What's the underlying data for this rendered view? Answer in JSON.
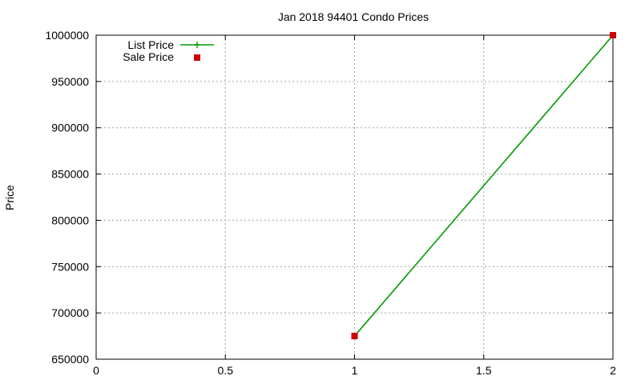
{
  "chart_data": {
    "type": "line",
    "title": "Jan 2018 94401 Condo Prices",
    "xlabel": "",
    "ylabel": "Price",
    "xlim": [
      0,
      2
    ],
    "ylim": [
      650000,
      1000000
    ],
    "xticks": [
      0,
      0.5,
      1,
      1.5,
      2
    ],
    "xtick_labels": [
      "0",
      "0.5",
      "1",
      "1.5",
      "2"
    ],
    "yticks": [
      650000,
      700000,
      750000,
      800000,
      850000,
      900000,
      950000,
      1000000
    ],
    "ytick_labels": [
      "650000",
      "700000",
      "750000",
      "800000",
      "850000",
      "900000",
      "950000",
      "1000000"
    ],
    "grid": true,
    "legend_position": "top-left",
    "series": [
      {
        "name": "List Price",
        "style": "line-with-plus-markers",
        "color": "#009900",
        "x": [
          1,
          2
        ],
        "y": [
          675000,
          1000000
        ]
      },
      {
        "name": "Sale Price",
        "style": "square-markers",
        "color": "#cc0000",
        "x": [
          1,
          2
        ],
        "y": [
          675000,
          1000000
        ]
      }
    ]
  }
}
